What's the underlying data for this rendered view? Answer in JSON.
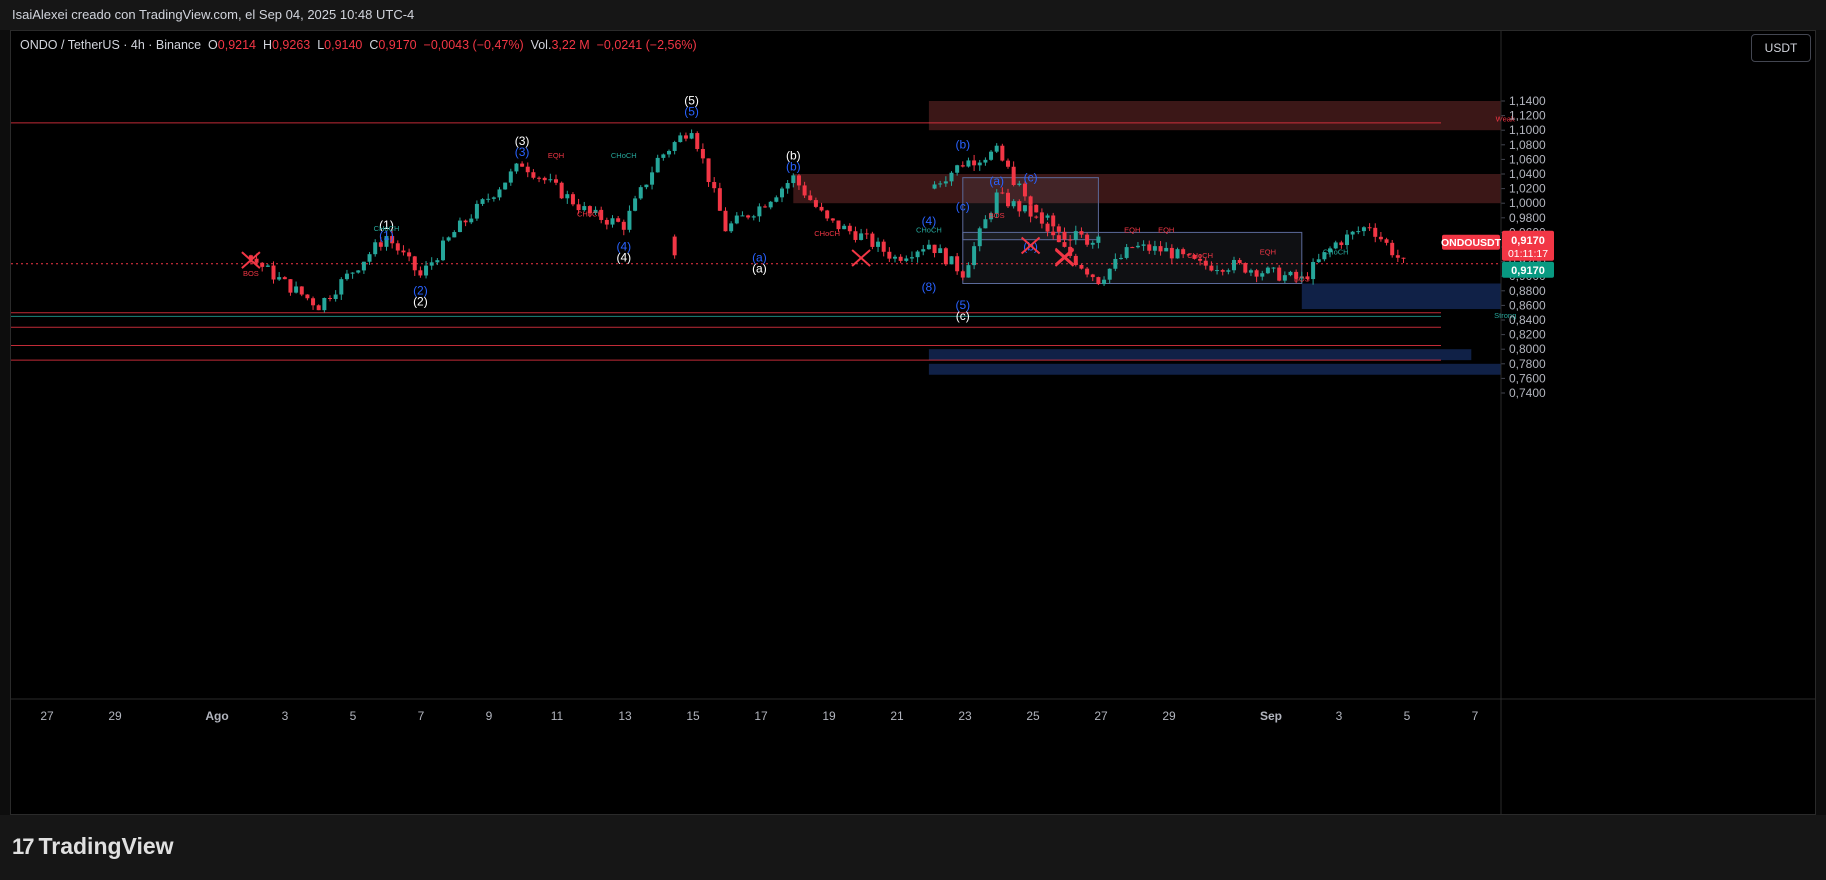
{
  "header": {
    "text": "IsaiAlexei creado con TradingView.com, el Sep 04, 2025 10:48 UTC-4"
  },
  "legend": {
    "symbol": "ONDO / TetherUS · 4h · Binance",
    "o_label": "O",
    "o": "0,9214",
    "h_label": "H",
    "h": "0,9263",
    "l_label": "L",
    "l": "0,9140",
    "c_label": "C",
    "c": "0,9170",
    "change": "−0,0043 (−0,47%)",
    "vol_label": "Vol.",
    "vol": "3,22 M",
    "vol_change": "−0,0241 (−2,56%)"
  },
  "currency_button": "USDT",
  "brand": {
    "name": "TradingView",
    "logo": "17"
  },
  "chart_data": {
    "type": "candlestick",
    "symbol": "ONDOUSDT",
    "last_price": "0,9170",
    "countdown": "01:11:17",
    "y_ticks": [
      "1,1400",
      "1,1200",
      "1,1000",
      "1,0800",
      "1,0600",
      "1,0400",
      "1,0200",
      "1,0000",
      "0,9800",
      "0,9600",
      "0,9400",
      "0,9200",
      "0,9000",
      "0,8800",
      "0,8600",
      "0,8400",
      "0,8200",
      "0,8000",
      "0,7800",
      "0,7600",
      "0,7400"
    ],
    "x_ticks": [
      "27",
      "29",
      "Ago",
      "3",
      "5",
      "7",
      "9",
      "11",
      "13",
      "15",
      "17",
      "19",
      "21",
      "23",
      "25",
      "27",
      "29",
      "Sep",
      "3",
      "5",
      "7"
    ],
    "price_path": [
      {
        "date": "Jul 26",
        "price": 1.02
      },
      {
        "date": "Jul 27",
        "price": 1.055
      },
      {
        "date": "Jul 28",
        "price": 1.07
      },
      {
        "date": "Jul 29",
        "price": 0.995
      },
      {
        "date": "Jul 30",
        "price": 0.955
      },
      {
        "date": "Jul 31",
        "price": 0.95
      },
      {
        "date": "Ago 1",
        "price": 0.925
      },
      {
        "date": "Ago 2",
        "price": 0.89
      },
      {
        "date": "Ago 3",
        "price": 0.86
      },
      {
        "date": "Ago 5",
        "price": 0.955
      },
      {
        "date": "Ago 6",
        "price": 0.9
      },
      {
        "date": "Ago 7",
        "price": 0.96
      },
      {
        "date": "Ago 9",
        "price": 1.055
      },
      {
        "date": "Ago 11",
        "price": 0.985
      },
      {
        "date": "Ago 12",
        "price": 0.97
      },
      {
        "date": "Ago 13",
        "price": 1.06
      },
      {
        "date": "Ago 14",
        "price": 1.105
      },
      {
        "date": "Ago 15",
        "price": 0.965
      },
      {
        "date": "Ago 16",
        "price": 0.995
      },
      {
        "date": "Ago 17",
        "price": 1.035
      },
      {
        "date": "Ago 18",
        "price": 0.975
      },
      {
        "date": "Ago 19",
        "price": 0.955
      },
      {
        "date": "Ago 20",
        "price": 0.925
      },
      {
        "date": "Ago 21",
        "price": 0.945
      },
      {
        "date": "Ago 22",
        "price": 0.905
      },
      {
        "date": "Ago 23",
        "price": 1.01
      },
      {
        "date": "Ago 24",
        "price": 0.985
      },
      {
        "date": "Ago 25",
        "price": 0.935
      },
      {
        "date": "Ago 26",
        "price": 0.895
      },
      {
        "date": "Ago 27",
        "price": 0.94
      },
      {
        "date": "Ago 28",
        "price": 0.935
      },
      {
        "date": "Ago 29",
        "price": 0.915
      },
      {
        "date": "Ago 30",
        "price": 0.915
      },
      {
        "date": "Ago 31",
        "price": 0.905
      },
      {
        "date": "Sep 1",
        "price": 0.895
      },
      {
        "date": "Sep 2",
        "price": 0.945
      },
      {
        "date": "Sep 3",
        "price": 0.97
      },
      {
        "date": "Sep 4",
        "price": 0.917
      }
    ],
    "zones": [
      {
        "type": "supply",
        "from": "Jul 26",
        "to": "Sep 7",
        "low": 1.1,
        "high": 1.14
      },
      {
        "type": "supply",
        "from": "Ago 17",
        "to": "Sep 7",
        "low": 1.0,
        "high": 1.04
      },
      {
        "type": "range",
        "from": "Jul 27",
        "to": "Jul 31",
        "low": 0.95,
        "high": 1.035
      },
      {
        "type": "range",
        "from": "Ago 22",
        "to": "Sep 1",
        "low": 0.89,
        "high": 0.96
      },
      {
        "type": "demand",
        "from": "Sep 1",
        "to": "Sep 7",
        "low": 0.855,
        "high": 0.89
      },
      {
        "type": "demand",
        "from": "Jul 26",
        "to": "Sep 7",
        "low": 0.765,
        "high": 0.78
      },
      {
        "type": "demand",
        "from": "Jul 26",
        "to": "Sep 6",
        "low": 0.785,
        "high": 0.8
      }
    ],
    "lines": [
      {
        "price": 1.11,
        "color": "#f23645"
      },
      {
        "price": 0.85,
        "color": "#f23645"
      },
      {
        "price": 0.845,
        "color": "#26a69a"
      },
      {
        "price": 0.83,
        "color": "#f23645"
      },
      {
        "price": 0.805,
        "color": "#f23645"
      },
      {
        "price": 0.785,
        "color": "#f23645"
      }
    ],
    "wave_labels": [
      {
        "date": "Jul 27",
        "price": 1.075,
        "text": "(b)",
        "color": "#2962ff"
      },
      {
        "date": "Jul 27",
        "price": 0.99,
        "text": "(c)",
        "color": "#2962ff"
      },
      {
        "date": "Ago 5",
        "price": 0.965,
        "text": "(1)",
        "color": "#ffffff"
      },
      {
        "date": "Ago 5",
        "price": 0.95,
        "text": "(1)",
        "color": "#2962ff"
      },
      {
        "date": "Ago 6",
        "price": 0.875,
        "text": "(2)",
        "color": "#2962ff"
      },
      {
        "date": "Ago 6",
        "price": 0.86,
        "text": "(2)",
        "color": "#ffffff"
      },
      {
        "date": "Ago 9",
        "price": 1.08,
        "text": "(3)",
        "color": "#ffffff"
      },
      {
        "date": "Ago 9",
        "price": 1.065,
        "text": "(3)",
        "color": "#2962ff"
      },
      {
        "date": "Ago 12",
        "price": 0.935,
        "text": "(4)",
        "color": "#2962ff"
      },
      {
        "date": "Ago 12",
        "price": 0.92,
        "text": "(4)",
        "color": "#ffffff"
      },
      {
        "date": "Ago 14",
        "price": 1.135,
        "text": "(5)",
        "color": "#ffffff"
      },
      {
        "date": "Ago 14",
        "price": 1.12,
        "text": "(5)",
        "color": "#2962ff"
      },
      {
        "date": "Ago 16",
        "price": 0.92,
        "text": "(a)",
        "color": "#2962ff"
      },
      {
        "date": "Ago 16",
        "price": 0.905,
        "text": "(a)",
        "color": "#ffffff"
      },
      {
        "date": "Ago 17",
        "price": 1.06,
        "text": "(b)",
        "color": "#ffffff"
      },
      {
        "date": "Ago 17",
        "price": 1.045,
        "text": "(b)",
        "color": "#2962ff"
      },
      {
        "date": "Ago 21",
        "price": 0.97,
        "text": "(4)",
        "color": "#2962ff"
      },
      {
        "date": "Ago 21",
        "price": 0.88,
        "text": "(8)",
        "color": "#2962ff"
      },
      {
        "date": "Ago 22",
        "price": 0.855,
        "text": "(5)",
        "color": "#2962ff"
      },
      {
        "date": "Ago 22",
        "price": 0.84,
        "text": "(c)",
        "color": "#ffffff"
      },
      {
        "date": "Ago 23",
        "price": 1.025,
        "text": "(a)",
        "color": "#2962ff"
      },
      {
        "date": "Ago 24",
        "price": 1.03,
        "text": "(c)",
        "color": "#2962ff"
      },
      {
        "date": "Ago 24",
        "price": 0.935,
        "text": "(b)",
        "color": "#2962ff"
      }
    ],
    "smc_labels": [
      {
        "date": "Jul 28",
        "price": 0.98,
        "text": "BOS",
        "color": "#f23645"
      },
      {
        "date": "Ago 1",
        "price": 0.9,
        "text": "BOS",
        "color": "#f23645"
      },
      {
        "date": "Ago 5",
        "price": 0.962,
        "text": "CHoCH",
        "color": "#26a69a"
      },
      {
        "date": "Ago 10",
        "price": 1.062,
        "text": "EQH",
        "color": "#f23645"
      },
      {
        "date": "Ago 12",
        "price": 1.062,
        "text": "CHoCH",
        "color": "#26a69a"
      },
      {
        "date": "Ago 11",
        "price": 0.982,
        "text": "CHoCH",
        "color": "#f23645"
      },
      {
        "date": "Ago 18",
        "price": 0.955,
        "text": "CHoCH",
        "color": "#f23645"
      },
      {
        "date": "Ago 21",
        "price": 0.96,
        "text": "CHoCH",
        "color": "#26a69a"
      },
      {
        "date": "Ago 27",
        "price": 0.96,
        "text": "EQH",
        "color": "#f23645"
      },
      {
        "date": "Ago 28",
        "price": 0.96,
        "text": "EQH",
        "color": "#f23645"
      },
      {
        "date": "Ago 29",
        "price": 0.925,
        "text": "CHoCH",
        "color": "#f23645"
      },
      {
        "date": "Ago 31",
        "price": 0.93,
        "text": "EQH",
        "color": "#f23645"
      },
      {
        "date": "Sep 2",
        "price": 0.93,
        "text": "CHoCH",
        "color": "#26a69a"
      },
      {
        "date": "Sep 1",
        "price": 0.893,
        "text": "BOS",
        "color": "#f23645"
      },
      {
        "date": "Sep 7",
        "price": 1.112,
        "text": "Weak",
        "color": "#f23645"
      },
      {
        "date": "Sep 7",
        "price": 0.843,
        "text": "Strong",
        "color": "#26a69a"
      }
    ],
    "x_marks": [
      {
        "date": "Jul 30",
        "price": 0.925
      },
      {
        "date": "Ago 1",
        "price": 0.922
      },
      {
        "date": "Ago 19",
        "price": 0.925
      },
      {
        "date": "Ago 24",
        "price": 0.942
      },
      {
        "date": "Ago 25",
        "price": 0.927
      }
    ]
  }
}
